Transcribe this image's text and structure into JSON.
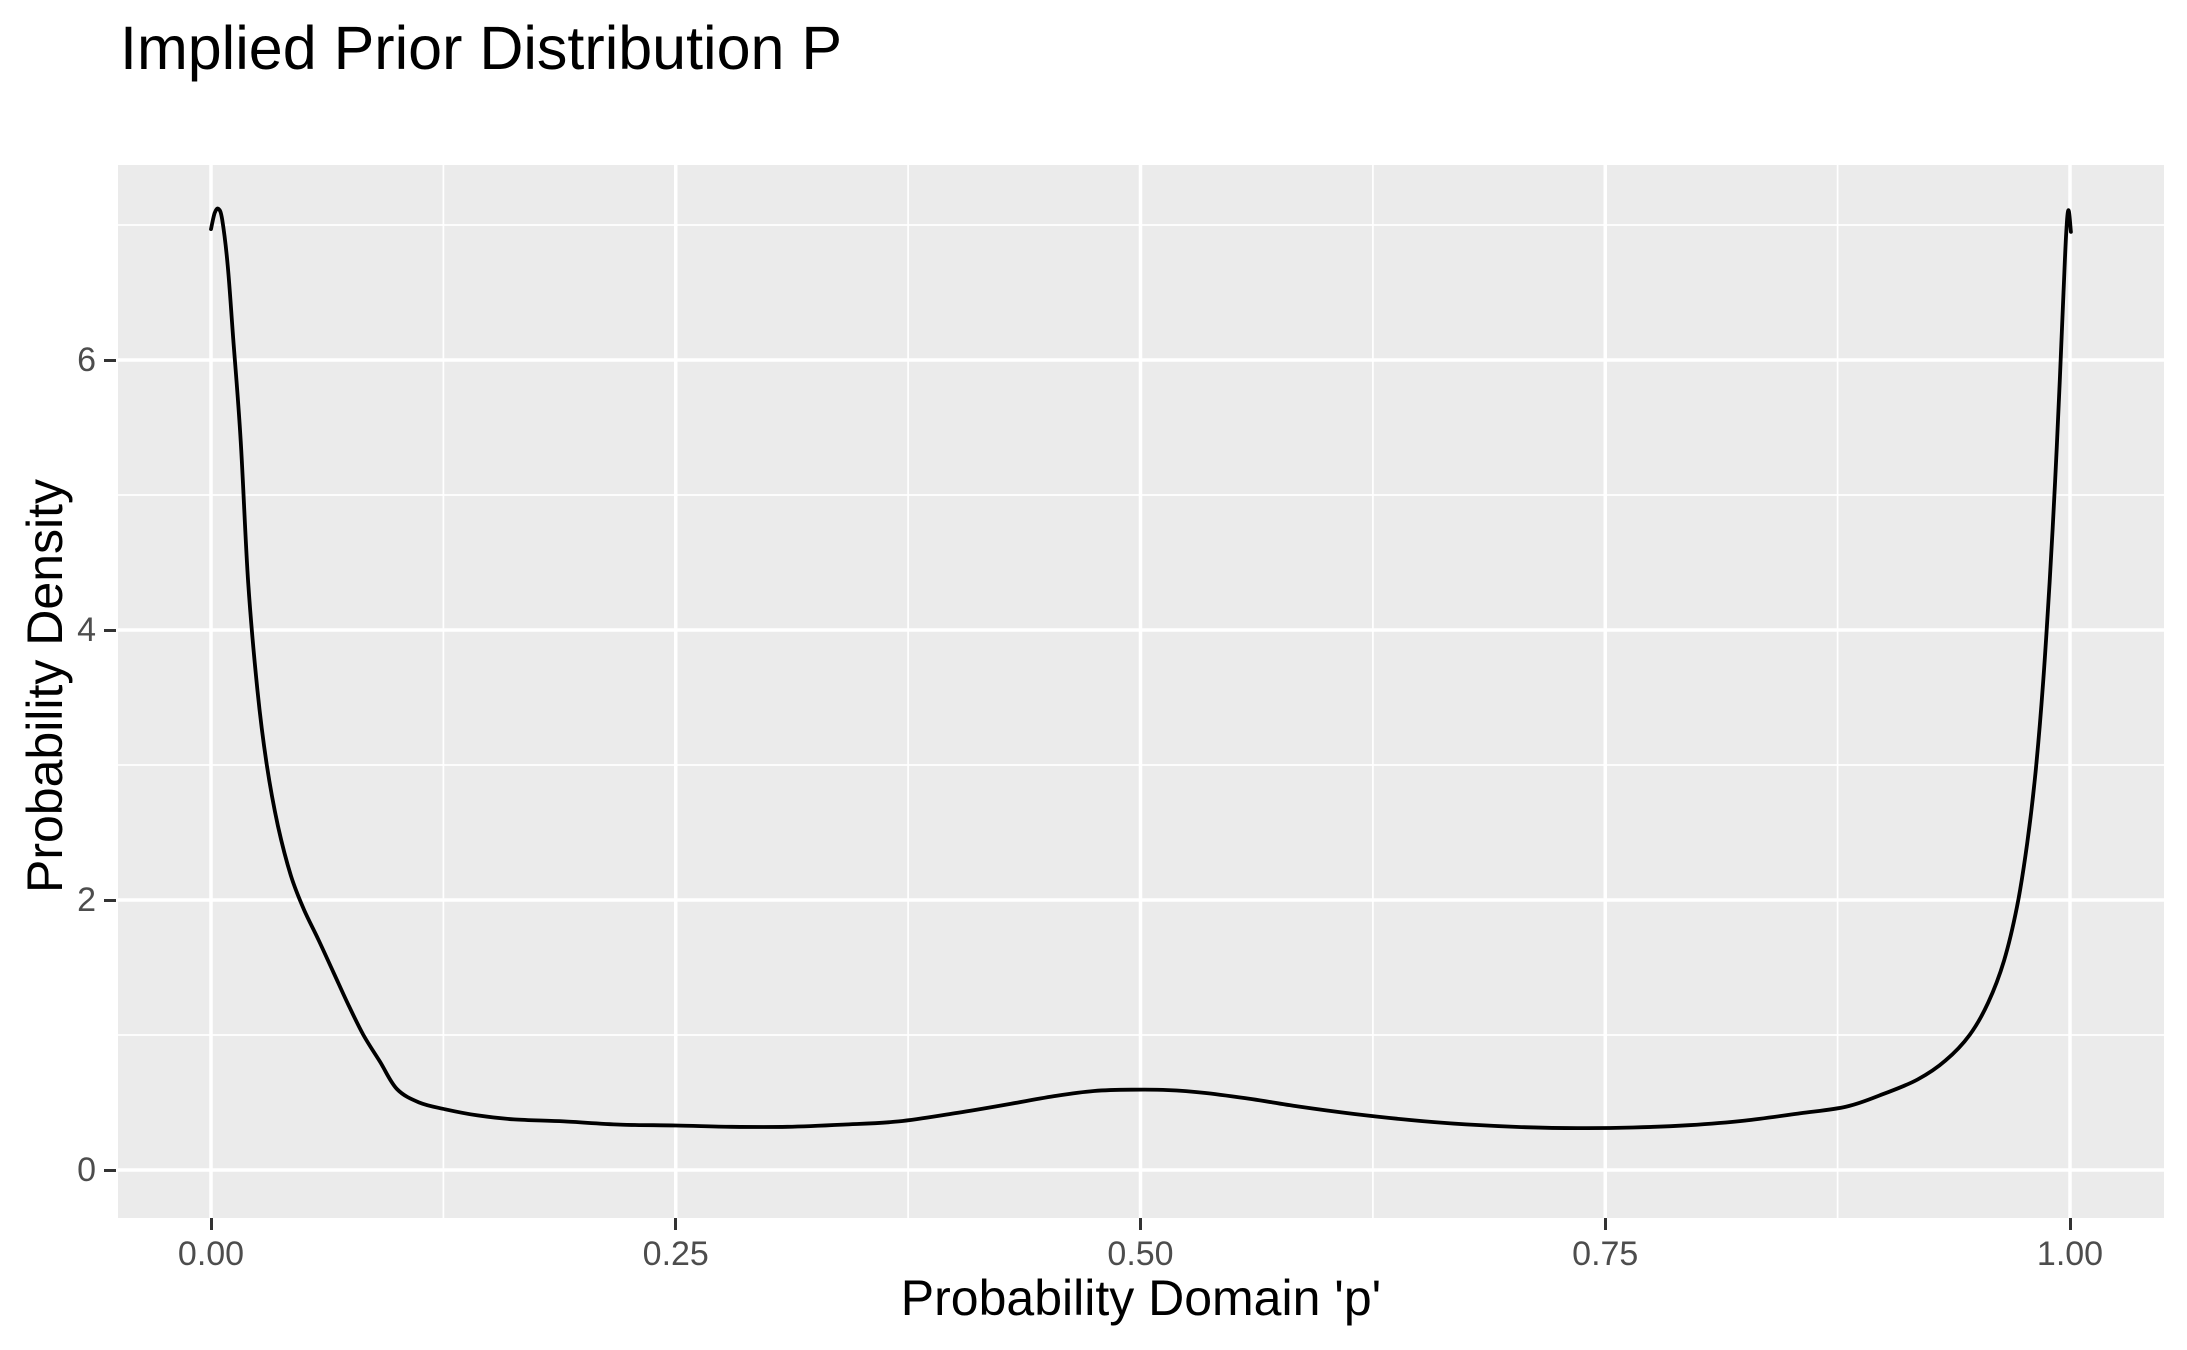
{
  "title": "Implied Prior Distribution P",
  "style": {
    "panel_background": "#EBEBEB",
    "grid_color": "#FFFFFF",
    "curve_color": "#000000",
    "tick_mark_color": "#333333",
    "tick_label_color": "#4D4D4D",
    "title_color": "#000000"
  },
  "chart_data": {
    "type": "line",
    "title": "Implied Prior Distribution P",
    "xlabel": "Probability Domain 'p'",
    "ylabel": "Probability Density",
    "xlim": [
      0,
      1
    ],
    "ylim": [
      0,
      7.45
    ],
    "x_axis_expansion": 0.05,
    "grid": "white major and minor gridlines on grey panel",
    "legend": "none",
    "x_ticks": [
      {
        "value": 0.0,
        "label": "0.00"
      },
      {
        "value": 0.25,
        "label": "0.25"
      },
      {
        "value": 0.5,
        "label": "0.50"
      },
      {
        "value": 0.75,
        "label": "0.75"
      },
      {
        "value": 1.0,
        "label": "1.00"
      }
    ],
    "x_minor_ticks": [
      0.125,
      0.375,
      0.625,
      0.875
    ],
    "y_ticks": [
      {
        "value": 0,
        "label": "0"
      },
      {
        "value": 2,
        "label": "2"
      },
      {
        "value": 4,
        "label": "4"
      },
      {
        "value": 6,
        "label": "6"
      }
    ],
    "y_minor_ticks": [
      1,
      3,
      5,
      7
    ],
    "series": [
      {
        "name": "implied-prior-density",
        "color": "#000000",
        "linewidth": 3.8,
        "points": [
          [
            0.0,
            6.97
          ],
          [
            0.002,
            7.09
          ],
          [
            0.004,
            7.12
          ],
          [
            0.006,
            7.04
          ],
          [
            0.009,
            6.7
          ],
          [
            0.012,
            6.15
          ],
          [
            0.016,
            5.4
          ],
          [
            0.02,
            4.35
          ],
          [
            0.025,
            3.55
          ],
          [
            0.03,
            3.0
          ],
          [
            0.036,
            2.55
          ],
          [
            0.043,
            2.18
          ],
          [
            0.05,
            1.93
          ],
          [
            0.058,
            1.7
          ],
          [
            0.066,
            1.46
          ],
          [
            0.074,
            1.22
          ],
          [
            0.082,
            1.0
          ],
          [
            0.091,
            0.8
          ],
          [
            0.1,
            0.6
          ],
          [
            0.112,
            0.5
          ],
          [
            0.126,
            0.45
          ],
          [
            0.143,
            0.405
          ],
          [
            0.163,
            0.375
          ],
          [
            0.19,
            0.36
          ],
          [
            0.22,
            0.336
          ],
          [
            0.25,
            0.33
          ],
          [
            0.28,
            0.32
          ],
          [
            0.31,
            0.32
          ],
          [
            0.34,
            0.336
          ],
          [
            0.37,
            0.36
          ],
          [
            0.4,
            0.42
          ],
          [
            0.43,
            0.49
          ],
          [
            0.455,
            0.55
          ],
          [
            0.475,
            0.585
          ],
          [
            0.495,
            0.595
          ],
          [
            0.515,
            0.592
          ],
          [
            0.535,
            0.57
          ],
          [
            0.56,
            0.525
          ],
          [
            0.585,
            0.47
          ],
          [
            0.615,
            0.415
          ],
          [
            0.645,
            0.37
          ],
          [
            0.675,
            0.338
          ],
          [
            0.705,
            0.318
          ],
          [
            0.735,
            0.31
          ],
          [
            0.765,
            0.315
          ],
          [
            0.795,
            0.332
          ],
          [
            0.825,
            0.366
          ],
          [
            0.855,
            0.42
          ],
          [
            0.88,
            0.47
          ],
          [
            0.9,
            0.565
          ],
          [
            0.918,
            0.67
          ],
          [
            0.933,
            0.81
          ],
          [
            0.946,
            1.0
          ],
          [
            0.956,
            1.24
          ],
          [
            0.9645,
            1.55
          ],
          [
            0.9715,
            1.95
          ],
          [
            0.977,
            2.42
          ],
          [
            0.9815,
            2.95
          ],
          [
            0.9855,
            3.6
          ],
          [
            0.989,
            4.35
          ],
          [
            0.992,
            5.1
          ],
          [
            0.9945,
            5.85
          ],
          [
            0.9965,
            6.5
          ],
          [
            0.998,
            6.95
          ],
          [
            0.9992,
            7.11
          ],
          [
            1.0005,
            6.95
          ]
        ]
      }
    ]
  }
}
